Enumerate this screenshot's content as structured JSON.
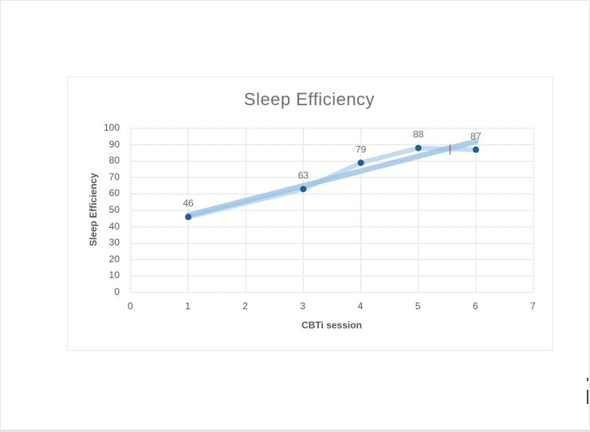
{
  "chart_data": {
    "type": "scatter",
    "title": "Sleep Efficiency",
    "xlabel": "CBTi session",
    "ylabel": "Sleep Efficiency",
    "xlim": [
      0,
      7
    ],
    "ylim": [
      0,
      100
    ],
    "x_ticks": [
      0,
      1,
      2,
      3,
      4,
      5,
      6,
      7
    ],
    "y_ticks": [
      0,
      10,
      20,
      30,
      40,
      50,
      60,
      70,
      80,
      90,
      100
    ],
    "grid": true,
    "legend": "none",
    "series": [
      {
        "name": "Sleep Efficiency",
        "x": [
          1,
          3,
          4,
          5,
          6
        ],
        "values": [
          46,
          63,
          79,
          88,
          87
        ],
        "data_labels": [
          "46",
          "63",
          "79",
          "88",
          "87"
        ],
        "marker_color": "#1f5f99"
      }
    ],
    "annotations": [
      {
        "type": "hand-drawn trend highlight",
        "from": [
          1,
          47
        ],
        "to": [
          6,
          92
        ],
        "color": "#9cc3e6"
      }
    ]
  }
}
